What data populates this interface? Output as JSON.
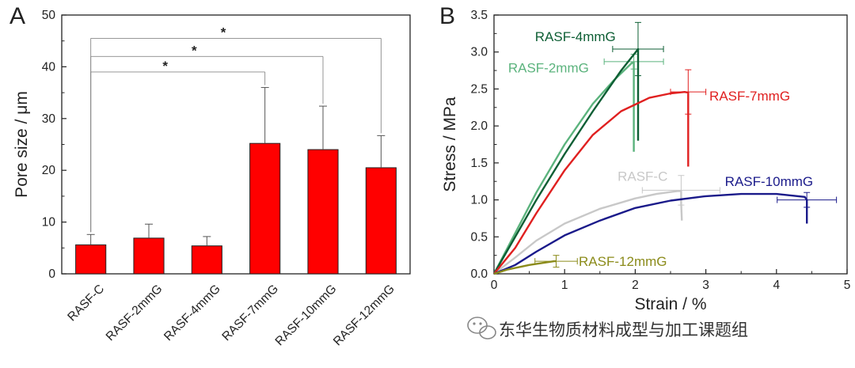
{
  "watermark": {
    "text": "东华生物质材料成型与加工课题组",
    "icon": "wechat-icon"
  },
  "chart_data": [
    {
      "type": "bar",
      "panel": "A",
      "ylabel": "Pore size / μm",
      "xlabel": "",
      "ylim": [
        0,
        50
      ],
      "yticks": [
        0,
        10,
        20,
        30,
        40,
        50
      ],
      "categories": [
        "RASF-C",
        "RASF-2mmG",
        "RASF-4mmG",
        "RASF-7mmG",
        "RASF-10mmG",
        "RASF-12mmG"
      ],
      "values": [
        5.6,
        6.9,
        5.4,
        25.2,
        24.0,
        20.5
      ],
      "errors": [
        2.0,
        2.7,
        1.8,
        10.8,
        8.4,
        6.2
      ],
      "bar_color": "#ff0000",
      "significance": [
        {
          "from": 0,
          "to": 3,
          "label": "*",
          "y": 39
        },
        {
          "from": 0,
          "to": 4,
          "label": "*",
          "y": 42
        },
        {
          "from": 0,
          "to": 5,
          "label": "*",
          "y": 45.5
        }
      ]
    },
    {
      "type": "line",
      "panel": "B",
      "xlabel": "Strain / %",
      "ylabel": "Stress / MPa",
      "xlim": [
        0,
        5
      ],
      "ylim": [
        0,
        3.5
      ],
      "xticks": [
        0,
        1,
        2,
        3,
        4,
        5
      ],
      "yticks": [
        0.0,
        0.5,
        1.0,
        1.5,
        2.0,
        2.5,
        3.0,
        3.5
      ],
      "series": [
        {
          "name": "RASF-C",
          "color": "#c8c8c8",
          "points": [
            [
              0,
              0
            ],
            [
              0.3,
              0.22
            ],
            [
              0.6,
              0.45
            ],
            [
              1.0,
              0.68
            ],
            [
              1.5,
              0.88
            ],
            [
              2.0,
              1.02
            ],
            [
              2.3,
              1.08
            ],
            [
              2.6,
              1.12
            ],
            [
              2.65,
              1.12
            ],
            [
              2.65,
              0.95
            ],
            [
              2.66,
              0.72
            ]
          ],
          "error": {
            "x": 2.65,
            "y": 1.13,
            "xerr": 0.55,
            "yerr": 0.2
          },
          "label": {
            "text": "RASF-C",
            "x": 1.75,
            "y": 1.32
          }
        },
        {
          "name": "RASF-2mmG",
          "color": "#5bb37d",
          "points": [
            [
              0,
              0
            ],
            [
              0.3,
              0.55
            ],
            [
              0.6,
              1.1
            ],
            [
              1.0,
              1.75
            ],
            [
              1.4,
              2.3
            ],
            [
              1.7,
              2.62
            ],
            [
              1.95,
              2.85
            ],
            [
              1.98,
              2.86
            ],
            [
              1.98,
              2.2
            ],
            [
              1.98,
              1.65
            ]
          ],
          "error": {
            "x": 1.98,
            "y": 2.87,
            "xerr": 0.42,
            "yerr": 0.1
          },
          "label": {
            "text": "RASF-2mmG",
            "x": 0.2,
            "y": 2.79
          }
        },
        {
          "name": "RASF-4mmG",
          "color": "#0d5e34",
          "points": [
            [
              0,
              0
            ],
            [
              0.3,
              0.5
            ],
            [
              0.6,
              1.0
            ],
            [
              1.0,
              1.62
            ],
            [
              1.4,
              2.2
            ],
            [
              1.8,
              2.75
            ],
            [
              2.0,
              2.99
            ],
            [
              2.04,
              3.04
            ],
            [
              2.04,
              2.5
            ],
            [
              2.04,
              1.8
            ]
          ],
          "error": {
            "x": 2.04,
            "y": 3.04,
            "xerr": 0.36,
            "yerr": 0.36
          },
          "label": {
            "text": "RASF-4mmG",
            "x": 0.58,
            "y": 3.21
          }
        },
        {
          "name": "RASF-7mmG",
          "color": "#e02020",
          "points": [
            [
              0,
              0
            ],
            [
              0.3,
              0.35
            ],
            [
              0.6,
              0.82
            ],
            [
              1.0,
              1.4
            ],
            [
              1.4,
              1.88
            ],
            [
              1.8,
              2.2
            ],
            [
              2.2,
              2.38
            ],
            [
              2.5,
              2.44
            ],
            [
              2.7,
              2.46
            ],
            [
              2.75,
              2.45
            ],
            [
              2.75,
              2.0
            ],
            [
              2.75,
              1.45
            ]
          ],
          "error": {
            "x": 2.75,
            "y": 2.46,
            "xerr": 0.25,
            "yerr": 0.3
          },
          "label": {
            "text": "RASF-7mmG",
            "x": 3.05,
            "y": 2.41
          }
        },
        {
          "name": "RASF-10mmG",
          "color": "#1a1a8a",
          "points": [
            [
              0,
              0
            ],
            [
              0.3,
              0.12
            ],
            [
              0.6,
              0.3
            ],
            [
              1.0,
              0.52
            ],
            [
              1.5,
              0.72
            ],
            [
              2.0,
              0.89
            ],
            [
              2.5,
              0.99
            ],
            [
              3.0,
              1.05
            ],
            [
              3.5,
              1.08
            ],
            [
              4.0,
              1.08
            ],
            [
              4.4,
              1.04
            ],
            [
              4.43,
              1.0
            ],
            [
              4.43,
              0.85
            ],
            [
              4.43,
              0.68
            ]
          ],
          "error": {
            "x": 4.43,
            "y": 1.0,
            "xerr": 0.42,
            "yerr": 0.1
          },
          "label": {
            "text": "RASF-10mmG",
            "x": 3.27,
            "y": 1.25
          }
        },
        {
          "name": "RASF-12mmG",
          "color": "#8b8b1a",
          "points": [
            [
              0,
              0
            ],
            [
              0.2,
              0.06
            ],
            [
              0.5,
              0.12
            ],
            [
              0.85,
              0.17
            ],
            [
              0.88,
              0.17
            ]
          ],
          "error": {
            "x": 0.88,
            "y": 0.17,
            "xerr": 0.3,
            "yerr": 0.08
          },
          "label": {
            "text": "RASF-12mmG",
            "x": 1.2,
            "y": 0.17
          }
        }
      ]
    }
  ]
}
